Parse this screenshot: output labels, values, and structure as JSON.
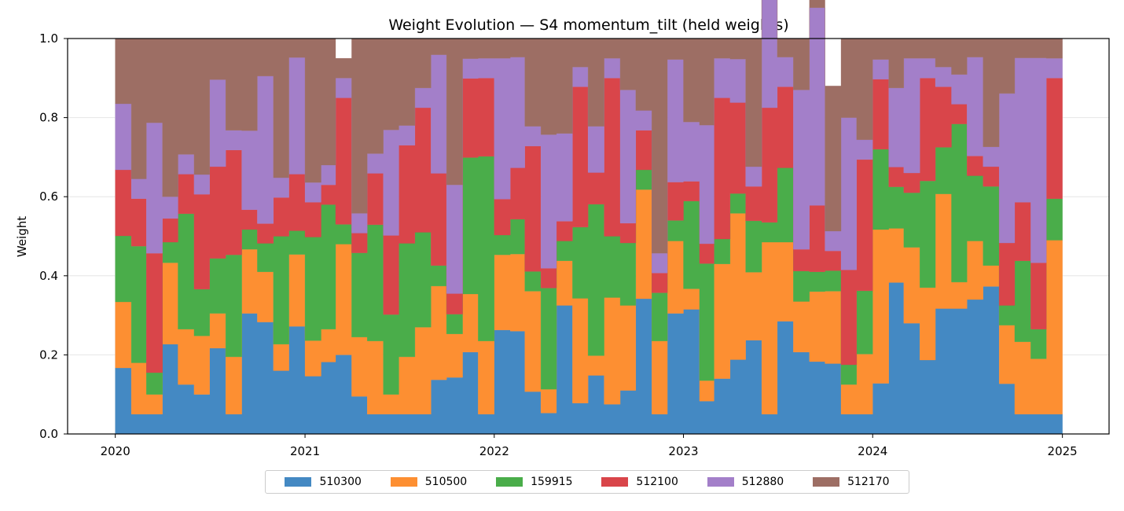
{
  "chart_data": {
    "type": "area",
    "subtype": "stacked-step",
    "title": "Weight Evolution — S4 momentum_tilt (held weights)",
    "xlabel": "",
    "ylabel": "Weight",
    "xlim": [
      "2019-10-01",
      "2025-04-01"
    ],
    "ylim": [
      0,
      1
    ],
    "x_ticks": [
      "2020",
      "2021",
      "2022",
      "2023",
      "2024",
      "2025"
    ],
    "y_ticks": [
      "0.0",
      "0.2",
      "0.4",
      "0.6",
      "0.8",
      "1.0"
    ],
    "grid": true,
    "legend": "bottom-center",
    "x": [
      "2020-01",
      "2020-02",
      "2020-03",
      "2020-04",
      "2020-05",
      "2020-06",
      "2020-07",
      "2020-08",
      "2020-09",
      "2020-10",
      "2020-11",
      "2020-12",
      "2021-01",
      "2021-02",
      "2021-03",
      "2021-04",
      "2021-05",
      "2021-06",
      "2021-07",
      "2021-08",
      "2021-09",
      "2021-10",
      "2021-11",
      "2021-12",
      "2022-01",
      "2022-02",
      "2022-03",
      "2022-04",
      "2022-05",
      "2022-06",
      "2022-07",
      "2022-08",
      "2022-09",
      "2022-10",
      "2022-11",
      "2022-12",
      "2023-01",
      "2023-02",
      "2023-03",
      "2023-04",
      "2023-05",
      "2023-06",
      "2023-07",
      "2023-08",
      "2023-09",
      "2023-10",
      "2023-11",
      "2023-12",
      "2024-01",
      "2024-02",
      "2024-03",
      "2024-04",
      "2024-05",
      "2024-06",
      "2024-07",
      "2024-08",
      "2024-09",
      "2024-10",
      "2024-11",
      "2024-12"
    ],
    "series": [
      {
        "name": "510300",
        "color": "#4489c3",
        "values": [
          0.167,
          0.05,
          0.05,
          0.227,
          0.125,
          0.1,
          0.217,
          0.05,
          0.305,
          0.283,
          0.16,
          0.272,
          0.146,
          0.182,
          0.2,
          0.095,
          0.05,
          0.05,
          0.05,
          0.05,
          0.137,
          0.143,
          0.207,
          0.05,
          0.263,
          0.26,
          0.107,
          0.053,
          0.325,
          0.078,
          0.148,
          0.075,
          0.11,
          0.342,
          0.05,
          0.305,
          0.315,
          0.083,
          0.14,
          0.188,
          0.237,
          0.05,
          0.285,
          0.207,
          0.183,
          0.178,
          0.05,
          0.05,
          0.128,
          0.383,
          0.28,
          0.187,
          0.317,
          0.317,
          0.34,
          0.373,
          0.127,
          0.05,
          0.05,
          0.05
        ]
      },
      {
        "name": "510500",
        "color": "#fd8f32",
        "values": [
          0.167,
          0.13,
          0.05,
          0.206,
          0.14,
          0.148,
          0.088,
          0.145,
          0.162,
          0.127,
          0.067,
          0.182,
          0.09,
          0.083,
          0.28,
          0.15,
          0.185,
          0.05,
          0.145,
          0.22,
          0.237,
          0.11,
          0.147,
          0.185,
          0.19,
          0.195,
          0.254,
          0.06,
          0.113,
          0.265,
          0.05,
          0.27,
          0.215,
          0.276,
          0.185,
          0.183,
          0.052,
          0.052,
          0.29,
          0.37,
          0.172,
          0.435,
          0.2,
          0.128,
          0.177,
          0.183,
          0.075,
          0.152,
          0.389,
          0.137,
          0.192,
          0.183,
          0.29,
          0.067,
          0.148,
          0.053,
          0.148,
          0.183,
          0.14,
          0.44
        ]
      },
      {
        "name": "159915",
        "color": "#4aad4a",
        "values": [
          0.167,
          0.295,
          0.055,
          0.052,
          0.292,
          0.118,
          0.139,
          0.258,
          0.05,
          0.072,
          0.273,
          0.06,
          0.262,
          0.315,
          0.05,
          0.213,
          0.294,
          0.202,
          0.287,
          0.24,
          0.052,
          0.05,
          0.345,
          0.467,
          0.05,
          0.088,
          0.05,
          0.256,
          0.05,
          0.18,
          0.383,
          0.155,
          0.158,
          0.05,
          0.122,
          0.052,
          0.222,
          0.296,
          0.063,
          0.05,
          0.13,
          0.05,
          0.188,
          0.077,
          0.05,
          0.052,
          0.05,
          0.16,
          0.203,
          0.105,
          0.138,
          0.27,
          0.118,
          0.4,
          0.165,
          0.2,
          0.05,
          0.205,
          0.075,
          0.105
        ]
      },
      {
        "name": "512100",
        "color": "#d9454a",
        "values": [
          0.167,
          0.12,
          0.302,
          0.06,
          0.1,
          0.24,
          0.232,
          0.265,
          0.05,
          0.05,
          0.098,
          0.143,
          0.088,
          0.05,
          0.32,
          0.05,
          0.13,
          0.2,
          0.248,
          0.315,
          0.233,
          0.052,
          0.2,
          0.198,
          0.091,
          0.13,
          0.317,
          0.05,
          0.05,
          0.355,
          0.08,
          0.4,
          0.05,
          0.1,
          0.05,
          0.097,
          0.05,
          0.05,
          0.357,
          0.23,
          0.087,
          0.29,
          0.205,
          0.055,
          0.168,
          0.05,
          0.24,
          0.332,
          0.177,
          0.05,
          0.05,
          0.26,
          0.153,
          0.05,
          0.05,
          0.05,
          0.158,
          0.148,
          0.168,
          0.305
        ]
      },
      {
        "name": "512880",
        "color": "#a37fc9",
        "values": [
          0.167,
          0.05,
          0.33,
          0.055,
          0.05,
          0.05,
          0.22,
          0.05,
          0.2,
          0.373,
          0.05,
          0.295,
          0.05,
          0.05,
          0.05,
          0.05,
          0.05,
          0.267,
          0.05,
          0.05,
          0.3,
          0.275,
          0.05,
          0.05,
          0.356,
          0.28,
          0.05,
          0.338,
          0.222,
          0.05,
          0.117,
          0.05,
          0.337,
          0.05,
          0.05,
          0.31,
          0.15,
          0.3,
          0.1,
          0.11,
          0.05,
          0.322,
          0.075,
          0.403,
          0.5,
          0.05,
          0.385,
          0.05,
          0.05,
          0.2,
          0.29,
          0.05,
          0.05,
          0.075,
          0.25,
          0.05,
          0.378,
          0.365,
          0.518,
          0.05
        ]
      },
      {
        "name": "512170",
        "color": "#9d6e64",
        "values": [
          0.165,
          0.355,
          0.213,
          0.4,
          0.293,
          0.344,
          0.104,
          0.232,
          0.233,
          0.095,
          0.352,
          0.048,
          0.364,
          0.32,
          0.05,
          0.442,
          0.291,
          0.231,
          0.22,
          0.125,
          0.041,
          0.37,
          0.051,
          0.05,
          0.05,
          0.047,
          0.222,
          0.243,
          0.24,
          0.072,
          0.222,
          0.05,
          0.13,
          0.182,
          0.543,
          0.053,
          0.211,
          0.219,
          0.05,
          0.052,
          0.324,
          0.053,
          0.047,
          0.13,
          0.059,
          0.367,
          0.2,
          0.256,
          0.053,
          0.125,
          0.05,
          0.05,
          0.072,
          0.091,
          0.047,
          0.274,
          0.139,
          0.049,
          0.049,
          0.05
        ]
      }
    ]
  }
}
